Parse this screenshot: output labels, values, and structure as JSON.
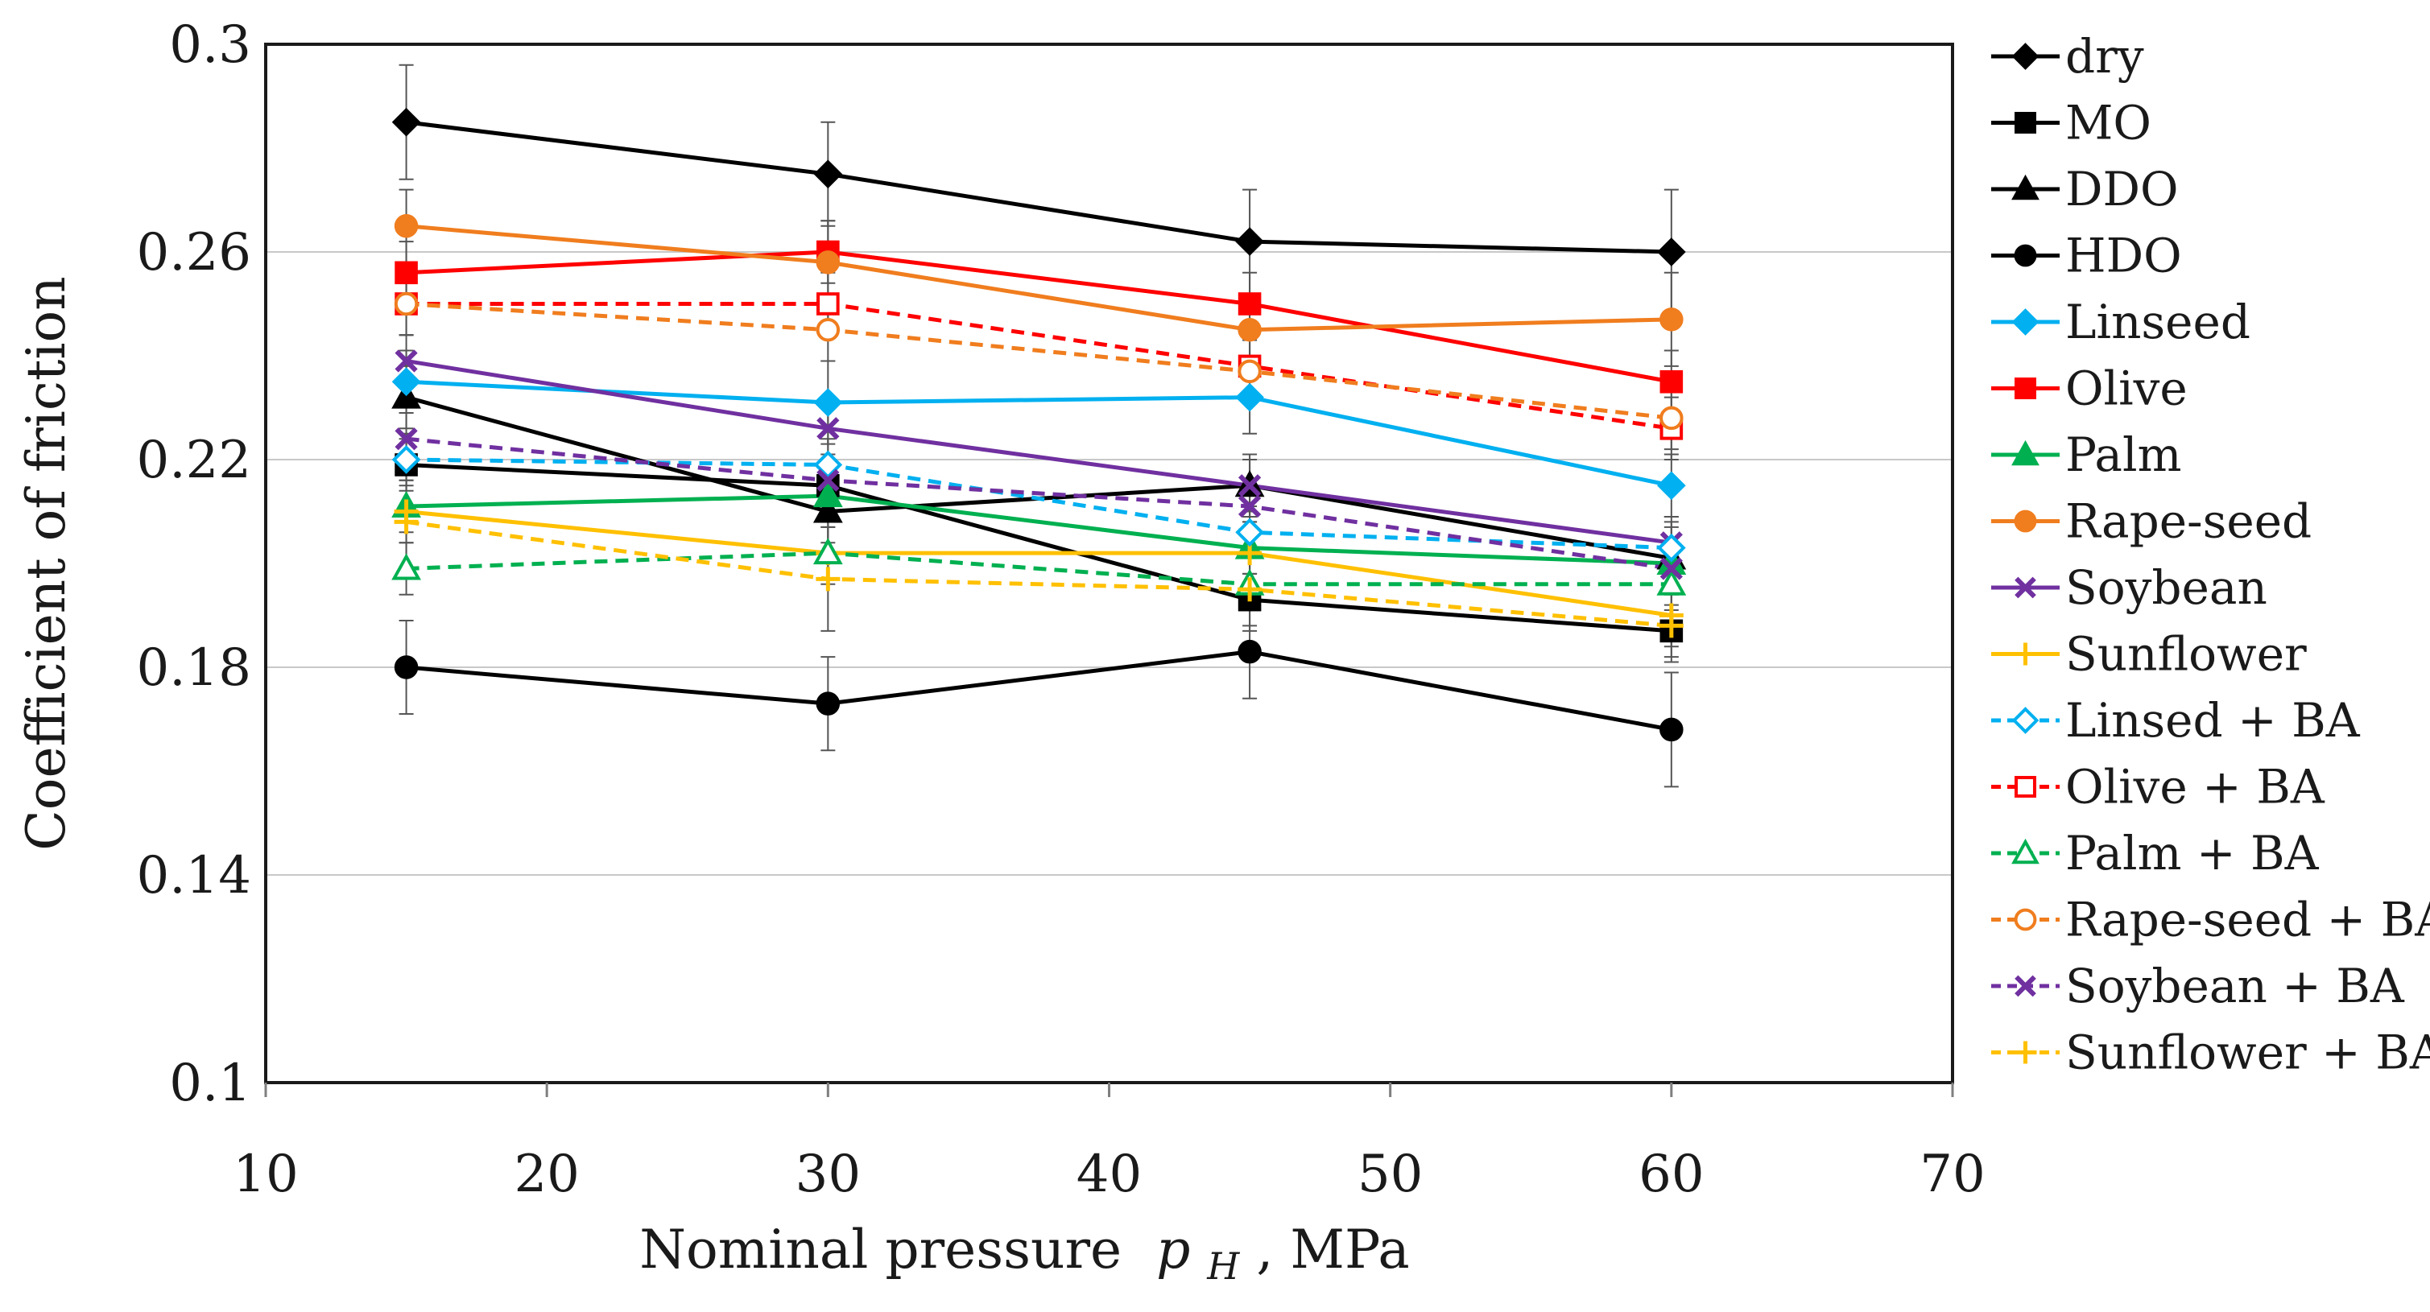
{
  "chart_data": {
    "type": "line",
    "title": "",
    "xlabel": "Nominal pressure",
    "xlabel_symbol": "p",
    "xlabel_subscript": "H",
    "xlabel_unit": ", MPa",
    "ylabel": "Coefficient of friction",
    "xlim": [
      10,
      70
    ],
    "ylim": [
      0.1,
      0.3
    ],
    "x_ticks": [
      10,
      20,
      30,
      40,
      50,
      60,
      70
    ],
    "x_tick_labels": [
      "10",
      "20",
      "30",
      "40",
      "50",
      "60",
      "70"
    ],
    "y_ticks": [
      0.1,
      0.14,
      0.18,
      0.22,
      0.26,
      0.3
    ],
    "y_tick_labels": [
      "0.1",
      "0.14",
      "0.18",
      "0.22",
      "0.26",
      "0.3"
    ],
    "grid": "horizontal",
    "legend_position": "right",
    "x": [
      15,
      30,
      45,
      60
    ],
    "series": [
      {
        "name": "dry",
        "color": "#000000",
        "marker": "diamond",
        "filled": true,
        "dashed": false,
        "values": [
          0.285,
          0.275,
          0.262,
          0.26
        ],
        "errors": [
          0.011,
          0.01,
          0.01,
          0.012
        ]
      },
      {
        "name": "MO",
        "color": "#000000",
        "marker": "square",
        "filled": true,
        "dashed": false,
        "values": [
          0.219,
          0.215,
          0.193,
          0.187
        ],
        "errors": [
          0.005,
          0.005,
          0.005,
          0.005
        ]
      },
      {
        "name": "DDO",
        "color": "#000000",
        "marker": "triangle",
        "filled": true,
        "dashed": false,
        "values": [
          0.232,
          0.21,
          0.215,
          0.201
        ],
        "errors": [
          0.006,
          0.006,
          0.006,
          0.006
        ]
      },
      {
        "name": "HDO",
        "color": "#000000",
        "marker": "circle",
        "filled": true,
        "dashed": false,
        "values": [
          0.18,
          0.173,
          0.183,
          0.168
        ],
        "errors": [
          0.009,
          0.009,
          0.009,
          0.011
        ]
      },
      {
        "name": "Linseed",
        "color": "#00b0f0",
        "marker": "diamond",
        "filled": true,
        "dashed": false,
        "values": [
          0.235,
          0.231,
          0.232,
          0.215
        ],
        "errors": [
          0.006,
          0.008,
          0.007,
          0.006
        ]
      },
      {
        "name": "Olive",
        "color": "#ff0000",
        "marker": "square",
        "filled": true,
        "dashed": false,
        "values": [
          0.256,
          0.26,
          0.25,
          0.235
        ],
        "errors": [
          0.006,
          0.006,
          0.006,
          0.006
        ]
      },
      {
        "name": "Palm",
        "color": "#00b050",
        "marker": "triangle",
        "filled": true,
        "dashed": false,
        "values": [
          0.211,
          0.213,
          0.203,
          0.2
        ],
        "errors": [
          0.005,
          0.005,
          0.005,
          0.005
        ]
      },
      {
        "name": "Rape-seed",
        "color": "#f07d1e",
        "marker": "circle",
        "filled": true,
        "dashed": false,
        "values": [
          0.265,
          0.258,
          0.245,
          0.247
        ],
        "errors": [
          0.007,
          0.008,
          0.007,
          0.009
        ]
      },
      {
        "name": "Soybean",
        "color": "#7030a0",
        "marker": "x",
        "filled": false,
        "dashed": false,
        "values": [
          0.239,
          0.226,
          0.215,
          0.204
        ],
        "errors": [
          0.005,
          0.005,
          0.005,
          0.005
        ]
      },
      {
        "name": "Sunflower",
        "color": "#ffc000",
        "marker": "plus",
        "filled": false,
        "dashed": false,
        "values": [
          0.21,
          0.202,
          0.202,
          0.19
        ],
        "errors": [
          0.006,
          0.006,
          0.006,
          0.006
        ]
      },
      {
        "name": "Linsed + BA",
        "color": "#00b0f0",
        "marker": "diamond",
        "filled": false,
        "dashed": true,
        "values": [
          0.22,
          0.219,
          0.206,
          0.203
        ],
        "errors": [
          0.005,
          0.005,
          0.005,
          0.005
        ]
      },
      {
        "name": "Olive + BA",
        "color": "#ff0000",
        "marker": "square",
        "filled": false,
        "dashed": true,
        "values": [
          0.25,
          0.25,
          0.238,
          0.226
        ],
        "errors": [
          0.006,
          0.006,
          0.006,
          0.006
        ]
      },
      {
        "name": "Palm + BA",
        "color": "#00b050",
        "marker": "triangle",
        "filled": false,
        "dashed": true,
        "values": [
          0.199,
          0.202,
          0.196,
          0.196
        ],
        "errors": [
          0.005,
          0.005,
          0.005,
          0.005
        ]
      },
      {
        "name": "Rape-seed + BA",
        "color": "#f07d1e",
        "marker": "circle",
        "filled": false,
        "dashed": true,
        "values": [
          0.25,
          0.245,
          0.237,
          0.228
        ],
        "errors": [
          0.006,
          0.006,
          0.006,
          0.006
        ]
      },
      {
        "name": "Soybean + BA",
        "color": "#7030a0",
        "marker": "x",
        "filled": false,
        "dashed": true,
        "values": [
          0.224,
          0.216,
          0.211,
          0.199
        ],
        "errors": [
          0.005,
          0.005,
          0.005,
          0.005
        ]
      },
      {
        "name": "Sunflower + BA",
        "color": "#ffc000",
        "marker": "plus",
        "filled": false,
        "dashed": true,
        "values": [
          0.208,
          0.197,
          0.195,
          0.188
        ],
        "errors": [
          0.01,
          0.01,
          0.008,
          0.007
        ]
      }
    ]
  }
}
